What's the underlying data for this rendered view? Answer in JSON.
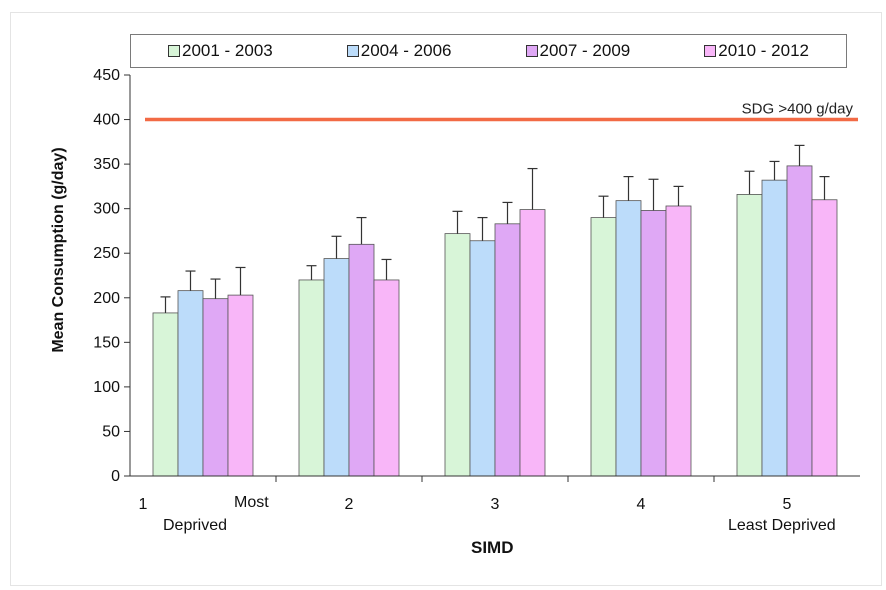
{
  "chart_data": {
    "type": "bar",
    "xlabel": "SIMD",
    "ylabel": "Mean Consumption (g/day)",
    "ylim": [
      0,
      450
    ],
    "yticks": [
      0,
      50,
      100,
      150,
      200,
      250,
      300,
      350,
      400,
      450
    ],
    "categories": [
      "1",
      "2",
      "3",
      "4",
      "5"
    ],
    "category_notes": {
      "most": "Most",
      "deprived": "Deprived",
      "least_deprived": "Least Deprived"
    },
    "legend_position": "top",
    "grid": false,
    "series": [
      {
        "name": "2001 - 2003",
        "color": "#d8f5d8",
        "values": [
          183,
          220,
          272,
          290,
          316
        ],
        "errors": [
          18,
          16,
          25,
          24,
          26
        ]
      },
      {
        "name": "2004 - 2006",
        "color": "#bcdcfa",
        "values": [
          208,
          244,
          264,
          309,
          332
        ],
        "errors": [
          22,
          25,
          26,
          27,
          21
        ]
      },
      {
        "name": "2007 - 2009",
        "color": "#dfa8f5",
        "values": [
          199,
          260,
          283,
          298,
          348
        ],
        "errors": [
          22,
          30,
          24,
          35,
          23
        ]
      },
      {
        "name": "2010 - 2012",
        "color": "#f8b6f8",
        "values": [
          203,
          220,
          299,
          303,
          310
        ],
        "errors": [
          31,
          23,
          46,
          22,
          26
        ]
      }
    ],
    "reference_line": {
      "value": 400,
      "label": "SDG >400 g/day",
      "color": "#f26a45"
    }
  }
}
